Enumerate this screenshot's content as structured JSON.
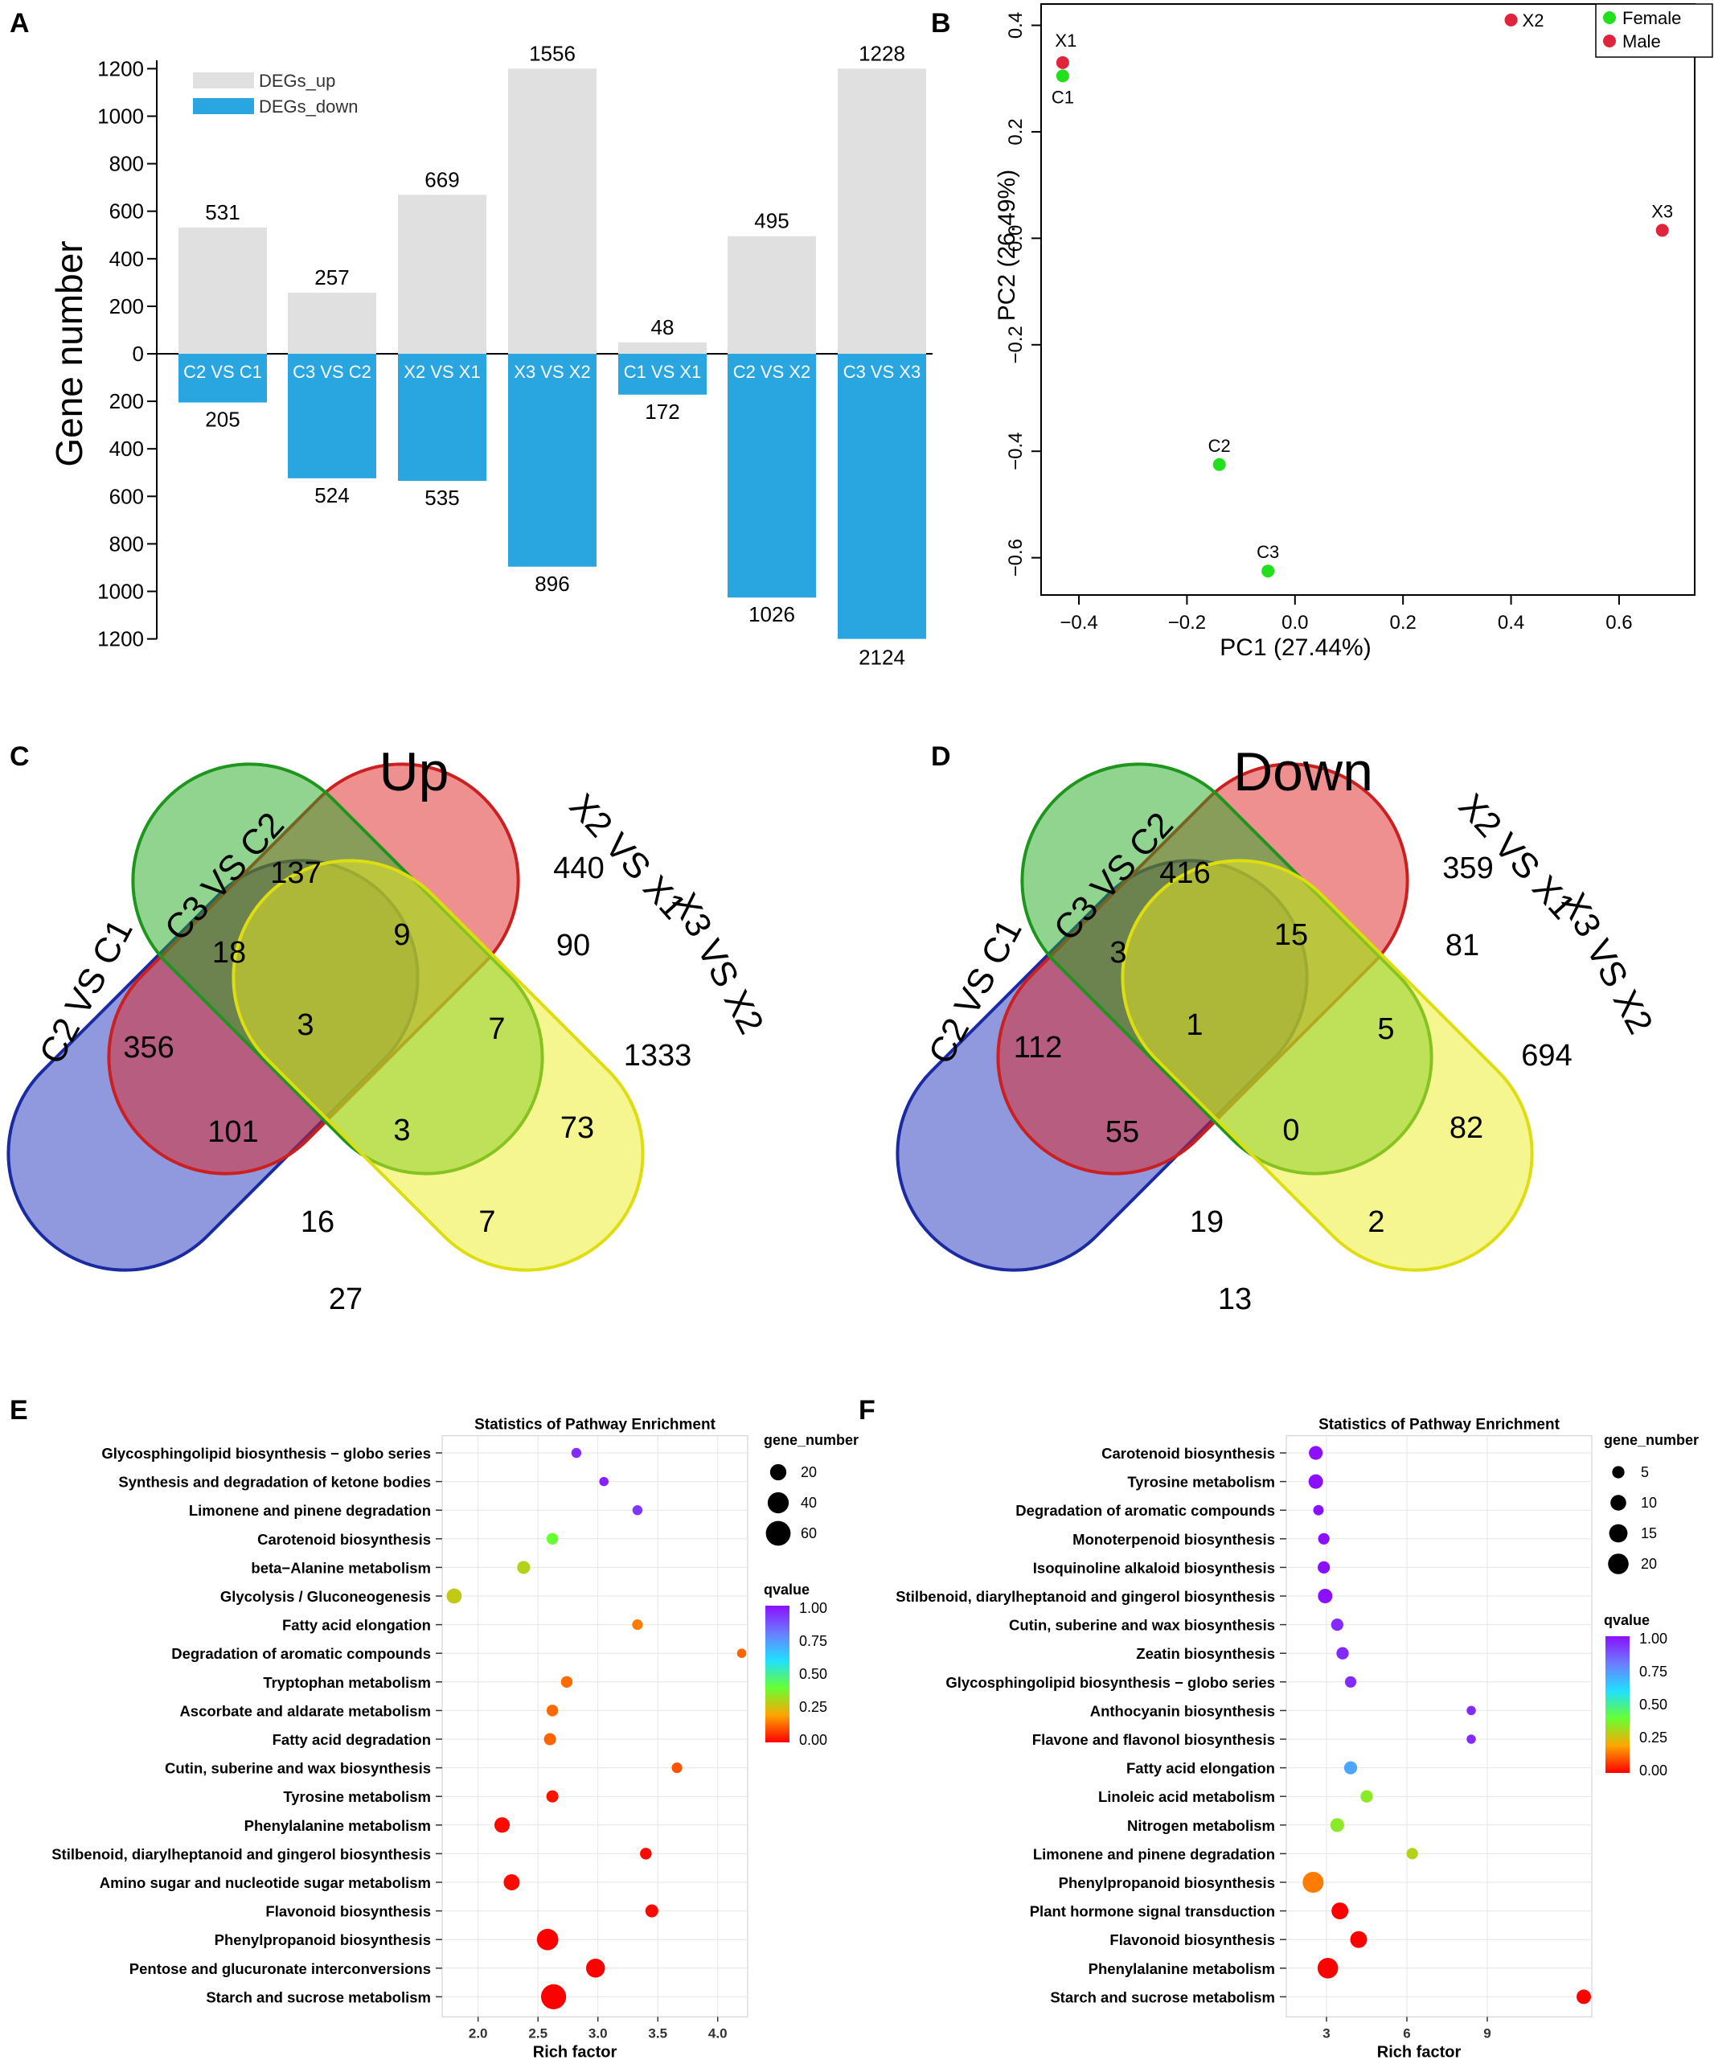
{
  "panels": {
    "A": "A",
    "B": "B",
    "C": "C",
    "D": "D",
    "E": "E",
    "F": "F"
  },
  "chart_data": [
    {
      "id": "A",
      "type": "bar",
      "ylabel": "Gene number",
      "ylim_up": [
        0,
        1200
      ],
      "ylim_down": [
        0,
        1200
      ],
      "yticks_up": [
        "1200",
        "1000",
        "800",
        "600",
        "400",
        "200",
        "0"
      ],
      "yticks_down": [
        "200",
        "400",
        "600",
        "800",
        "1000",
        "1200"
      ],
      "legend": [
        {
          "name": "DEGs_up",
          "color": "#e0e0e0"
        },
        {
          "name": "DEGs_down",
          "color": "#29a6e0"
        }
      ],
      "categories": [
        "C2 VS C1",
        "C3 VS C2",
        "X2 VS X1",
        "X3 VS X2",
        "C1 VS X1",
        "C2 VS X2",
        "C3 VS X3"
      ],
      "series": [
        {
          "name": "DEGs_up",
          "values": [
            531,
            257,
            669,
            1556,
            48,
            495,
            1228
          ]
        },
        {
          "name": "DEGs_down",
          "values": [
            205,
            524,
            535,
            896,
            172,
            1026,
            2124
          ]
        }
      ],
      "value_labels_up": [
        "531",
        "257",
        "669",
        "1556",
        "48",
        "495",
        "1228"
      ],
      "value_labels_down": [
        "205",
        "524",
        "535",
        "896",
        "172",
        "1026",
        "2124"
      ]
    },
    {
      "id": "B",
      "type": "scatter",
      "xlabel": "PC1 (27.44%)",
      "ylabel": "PC2 (26.49%)",
      "xlim": [
        -0.47,
        0.74
      ],
      "ylim": [
        -0.67,
        0.44
      ],
      "xticks": [
        -0.4,
        -0.2,
        0.0,
        0.2,
        0.4,
        0.6
      ],
      "xtick_labels": [
        "−0.4",
        "−0.2",
        "0.0",
        "0.2",
        "0.4",
        "0.6"
      ],
      "yticks": [
        0.4,
        0.2,
        0.0,
        -0.2,
        -0.4,
        -0.6
      ],
      "ytick_labels": [
        "0.4",
        "0.2",
        "0.0",
        "−0.2",
        "−0.4",
        "−0.6"
      ],
      "legend": [
        {
          "name": "Female",
          "color": "#22e01e"
        },
        {
          "name": "Male",
          "color": "#e0243c"
        }
      ],
      "points": [
        {
          "label": "X1",
          "x": -0.43,
          "y": 0.33,
          "group": "Male"
        },
        {
          "label": "C1",
          "x": -0.43,
          "y": 0.305,
          "group": "Female"
        },
        {
          "label": "X2",
          "x": 0.4,
          "y": 0.41,
          "group": "Male"
        },
        {
          "label": "X3",
          "x": 0.68,
          "y": 0.015,
          "group": "Male"
        },
        {
          "label": "C2",
          "x": -0.14,
          "y": -0.425,
          "group": "Female"
        },
        {
          "label": "C3",
          "x": -0.05,
          "y": -0.625,
          "group": "Female"
        }
      ]
    },
    {
      "id": "C",
      "type": "venn",
      "title": "Up",
      "sets": [
        "C2 VS C1",
        "C3 VS C2",
        "X2 VS X1",
        "X3 VS X2"
      ],
      "regions": {
        "only1": "356",
        "only2": "137",
        "only3": "440",
        "only4": "1333",
        "s12": "18",
        "s23": "9",
        "s34": "90",
        "s123": "3",
        "s234": "7",
        "s1234": "3",
        "s13": "101",
        "s24": "73",
        "s134": "16",
        "s124": "7",
        "s14": "27"
      }
    },
    {
      "id": "D",
      "type": "venn",
      "title": "Down",
      "sets": [
        "C2 VS C1",
        "C3 VS C2",
        "X2 VS X1",
        "X3 VS X2"
      ],
      "regions": {
        "only1": "112",
        "only2": "416",
        "only3": "359",
        "only4": "694",
        "s12": "3",
        "s23": "15",
        "s34": "81",
        "s123": "1",
        "s234": "5",
        "s1234": "0",
        "s13": "55",
        "s24": "82",
        "s134": "19",
        "s124": "2",
        "s14": "13"
      }
    },
    {
      "id": "E",
      "type": "scatter",
      "title": "Statistics of Pathway Enrichment",
      "xlabel": "Rich factor",
      "xlim": [
        1.7,
        4.25
      ],
      "xticks": [
        2.0,
        2.5,
        3.0,
        3.5,
        4.0
      ],
      "xtick_labels": [
        "2.0",
        "2.5",
        "3.0",
        "3.5",
        "4.0"
      ],
      "size_legend_title": "gene_number",
      "size_legend": [
        20,
        40,
        60
      ],
      "color_legend_title": "qvalue",
      "color_ticks": [
        "1.00",
        "0.75",
        "0.50",
        "0.25",
        "0.00"
      ],
      "pathways": [
        {
          "name": "Glycosphingolipid biosynthesis − globo series",
          "x": 2.82,
          "genes": 4,
          "q": 0.95
        },
        {
          "name": "Synthesis and degradation of ketone bodies",
          "x": 3.05,
          "genes": 3,
          "q": 0.97
        },
        {
          "name": "Limonene and pinene degradation",
          "x": 3.33,
          "genes": 4,
          "q": 0.93
        },
        {
          "name": "Carotenoid biosynthesis",
          "x": 2.62,
          "genes": 7,
          "q": 0.4
        },
        {
          "name": "beta−Alanine metabolism",
          "x": 2.38,
          "genes": 10,
          "q": 0.3
        },
        {
          "name": "Glycolysis / Gluconeogenesis",
          "x": 1.8,
          "genes": 16,
          "q": 0.28
        },
        {
          "name": "Fatty acid elongation",
          "x": 3.33,
          "genes": 5,
          "q": 0.15
        },
        {
          "name": "Degradation of aromatic compounds",
          "x": 4.2,
          "genes": 3,
          "q": 0.12
        },
        {
          "name": "Tryptophan metabolism",
          "x": 2.74,
          "genes": 7,
          "q": 0.13
        },
        {
          "name": "Ascorbate and aldarate metabolism",
          "x": 2.62,
          "genes": 7,
          "q": 0.13
        },
        {
          "name": "Fatty acid degradation",
          "x": 2.6,
          "genes": 8,
          "q": 0.12
        },
        {
          "name": "Cutin, suberine and wax biosynthesis",
          "x": 3.66,
          "genes": 5,
          "q": 0.1
        },
        {
          "name": "Tyrosine metabolism",
          "x": 2.62,
          "genes": 8,
          "q": 0.02
        },
        {
          "name": "Phenylalanine metabolism",
          "x": 2.2,
          "genes": 17,
          "q": 0.01
        },
        {
          "name": "Stilbenoid, diarylheptanoid and gingerol biosynthesis",
          "x": 3.4,
          "genes": 7,
          "q": 0.01
        },
        {
          "name": "Amino sugar and nucleotide sugar metabolism",
          "x": 2.28,
          "genes": 19,
          "q": 0.01
        },
        {
          "name": "Flavonoid biosynthesis",
          "x": 3.45,
          "genes": 10,
          "q": 0.01
        },
        {
          "name": "Phenylpropanoid biosynthesis",
          "x": 2.58,
          "genes": 42,
          "q": 0.0
        },
        {
          "name": "Pentose and glucuronate interconversions",
          "x": 2.98,
          "genes": 30,
          "q": 0.0
        },
        {
          "name": "Starch and sucrose metabolism",
          "x": 2.63,
          "genes": 62,
          "q": 0.0
        }
      ]
    },
    {
      "id": "F",
      "type": "scatter",
      "title": "Statistics of Pathway Enrichment",
      "xlabel": "Rich factor",
      "xlim": [
        1.5,
        12.9
      ],
      "xticks": [
        3,
        6,
        9
      ],
      "xtick_labels": [
        "3",
        "6",
        "9"
      ],
      "size_legend_title": "gene_number",
      "size_legend": [
        5,
        10,
        15,
        20
      ],
      "color_legend_title": "qvalue",
      "color_ticks": [
        "1.00",
        "0.75",
        "0.50",
        "0.25",
        "0.00"
      ],
      "pathways": [
        {
          "name": "Carotenoid biosynthesis",
          "x": 2.6,
          "genes": 7,
          "q": 1.0
        },
        {
          "name": "Tyrosine metabolism",
          "x": 2.6,
          "genes": 8,
          "q": 1.0
        },
        {
          "name": "Degradation of aromatic compounds",
          "x": 2.7,
          "genes": 3,
          "q": 1.0
        },
        {
          "name": "Monoterpenoid biosynthesis",
          "x": 2.9,
          "genes": 4,
          "q": 1.0
        },
        {
          "name": "Isoquinoline alkaloid biosynthesis",
          "x": 2.9,
          "genes": 5,
          "q": 1.0
        },
        {
          "name": "Stilbenoid, diarylheptanoid and gingerol biosynthesis",
          "x": 2.95,
          "genes": 8,
          "q": 1.0
        },
        {
          "name": "Cutin, suberine and wax biosynthesis",
          "x": 3.4,
          "genes": 5,
          "q": 0.95
        },
        {
          "name": "Zeatin biosynthesis",
          "x": 3.6,
          "genes": 5,
          "q": 0.95
        },
        {
          "name": "Glycosphingolipid biosynthesis − globo series",
          "x": 3.9,
          "genes": 4,
          "q": 0.95
        },
        {
          "name": "Anthocyanin biosynthesis",
          "x": 8.4,
          "genes": 2,
          "q": 0.95
        },
        {
          "name": "Flavone and flavonol biosynthesis",
          "x": 8.4,
          "genes": 2,
          "q": 0.95
        },
        {
          "name": "Fatty acid elongation",
          "x": 3.9,
          "genes": 6,
          "q": 0.72
        },
        {
          "name": "Linoleic acid metabolism",
          "x": 4.5,
          "genes": 5,
          "q": 0.35
        },
        {
          "name": "Nitrogen metabolism",
          "x": 3.4,
          "genes": 7,
          "q": 0.35
        },
        {
          "name": "Limonene and pinene degradation",
          "x": 6.2,
          "genes": 4,
          "q": 0.3
        },
        {
          "name": "Phenylpropanoid biosynthesis",
          "x": 2.5,
          "genes": 21,
          "q": 0.15
        },
        {
          "name": "Plant hormone signal transduction",
          "x": 3.5,
          "genes": 12,
          "q": 0.0
        },
        {
          "name": "Flavonoid biosynthesis",
          "x": 4.2,
          "genes": 12,
          "q": 0.0
        },
        {
          "name": "Phenylalanine metabolism",
          "x": 3.05,
          "genes": 20,
          "q": 0.0
        },
        {
          "name": "Starch and sucrose metabolism",
          "x": 12.6,
          "genes": 8,
          "q": 0.0
        }
      ]
    }
  ]
}
